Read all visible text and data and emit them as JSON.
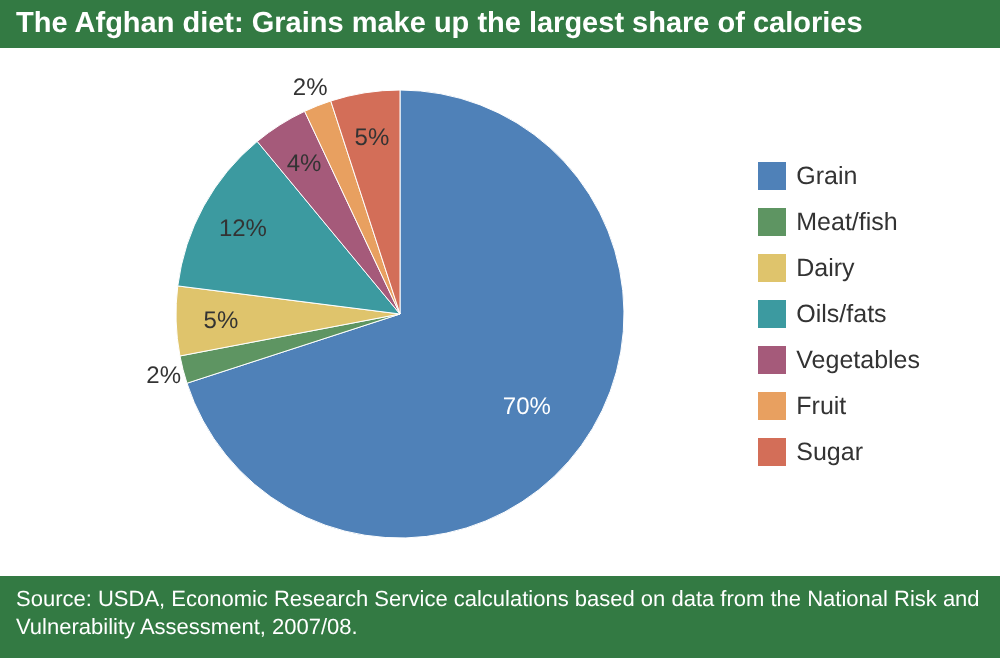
{
  "chart_data": {
    "type": "pie",
    "title": "The Afghan diet: Grains make up the largest share of calories",
    "categories": [
      "Grain",
      "Meat/fish",
      "Dairy",
      "Oils/fats",
      "Vegetables",
      "Fruit",
      "Sugar"
    ],
    "values": [
      70,
      2,
      5,
      12,
      4,
      2,
      5
    ],
    "value_labels": [
      "70%",
      "2%",
      "5%",
      "12%",
      "4%",
      "2%",
      "5%"
    ],
    "colors": [
      "#4f81b8",
      "#5e9562",
      "#dfc46c",
      "#3c9aa0",
      "#a55a7a",
      "#e8a060",
      "#d36e58"
    ],
    "legend": "right",
    "annotations": [
      "Source: USDA, Economic Research Service calculations based on data from the National Risk and Vulnerability Assessment, 2007/08."
    ]
  }
}
